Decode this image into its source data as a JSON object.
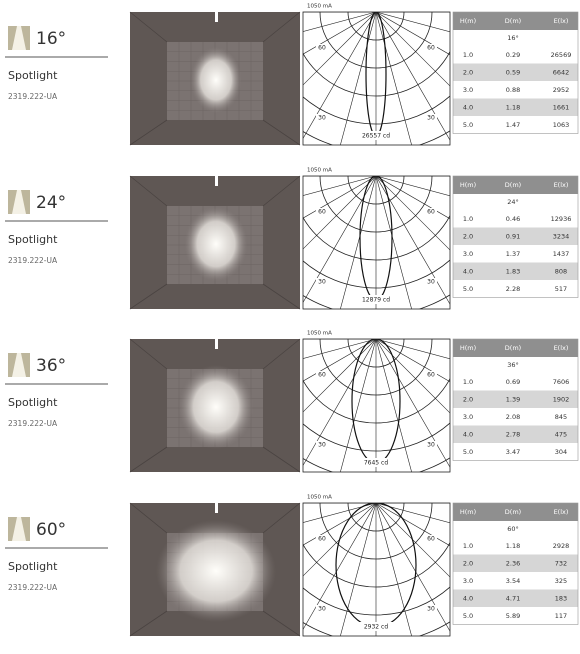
{
  "blocks": [
    {
      "angle": "16°",
      "name": "Spotlight",
      "code": "2319.222-UA",
      "polar": {
        "current": "1050 mA",
        "angle_labels": [
          "60",
          "60",
          "30",
          "30"
        ],
        "intensity": "26557 cd"
      },
      "table": {
        "header": [
          "H(m)",
          "D(m)",
          "E(lx)"
        ],
        "beam": "16°",
        "rows": [
          [
            "1.0",
            "0.29",
            "26569"
          ],
          [
            "2.0",
            "0.59",
            "6642"
          ],
          [
            "3.0",
            "0.88",
            "2952"
          ],
          [
            "4.0",
            "1.18",
            "1661"
          ],
          [
            "5.0",
            "1.47",
            "1063"
          ]
        ]
      }
    },
    {
      "angle": "24°",
      "name": "Spotlight",
      "code": "2319.222-UA",
      "polar": {
        "current": "1050 mA",
        "angle_labels": [
          "60",
          "60",
          "30",
          "30"
        ],
        "intensity": "12879 cd"
      },
      "table": {
        "header": [
          "H(m)",
          "D(m)",
          "E(lx)"
        ],
        "beam": "24°",
        "rows": [
          [
            "1.0",
            "0.46",
            "12936"
          ],
          [
            "2.0",
            "0.91",
            "3234"
          ],
          [
            "3.0",
            "1.37",
            "1437"
          ],
          [
            "4.0",
            "1.83",
            "808"
          ],
          [
            "5.0",
            "2.28",
            "517"
          ]
        ]
      }
    },
    {
      "angle": "36°",
      "name": "Spotlight",
      "code": "2319.222-UA",
      "polar": {
        "current": "1050 mA",
        "angle_labels": [
          "60",
          "60",
          "30",
          "30"
        ],
        "intensity": "7645 cd"
      },
      "table": {
        "header": [
          "H(m)",
          "D(m)",
          "E(lx)"
        ],
        "beam": "36°",
        "rows": [
          [
            "1.0",
            "0.69",
            "7606"
          ],
          [
            "2.0",
            "1.39",
            "1902"
          ],
          [
            "3.0",
            "2.08",
            "845"
          ],
          [
            "4.0",
            "2.78",
            "475"
          ],
          [
            "5.0",
            "3.47",
            "304"
          ]
        ]
      }
    },
    {
      "angle": "60°",
      "name": "Spotlight",
      "code": "2319.222-UA",
      "polar": {
        "current": "1050 mA",
        "angle_labels": [
          "60",
          "60",
          "30",
          "30"
        ],
        "intensity": "2932 cd"
      },
      "table": {
        "header": [
          "H(m)",
          "D(m)",
          "E(lx)"
        ],
        "beam": "60°",
        "rows": [
          [
            "1.0",
            "1.18",
            "2928"
          ],
          [
            "2.0",
            "2.36",
            "732"
          ],
          [
            "3.0",
            "3.54",
            "325"
          ],
          [
            "4.0",
            "4.71",
            "183"
          ],
          [
            "5.0",
            "5.89",
            "117"
          ]
        ]
      }
    }
  ]
}
